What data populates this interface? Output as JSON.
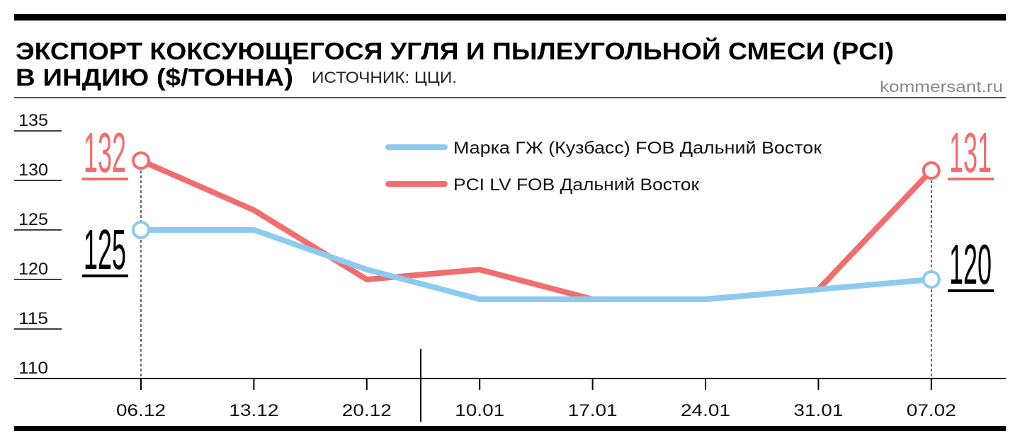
{
  "chart_data": {
    "type": "line",
    "title": "ЭКСПОРТ КОКСУЮЩЕГОСЯ УГЛЯ И ПЫЛЕУГОЛЬНОЙ СМЕСИ (PCI)",
    "subtitle": "В ИНДИЮ ($/ТОННА)",
    "source": "ИСТОЧНИК: ЦЦИ.",
    "site": "kommersant.ru",
    "categories": [
      "06.12",
      "13.12",
      "20.12",
      "10.01",
      "17.01",
      "24.01",
      "31.01",
      "07.02"
    ],
    "yticks": [
      "135",
      "130",
      "125",
      "120",
      "115",
      "110"
    ],
    "ylim": [
      110,
      135
    ],
    "grid": false,
    "legend_position": "top-right",
    "series": [
      {
        "name": "Марка ГЖ (Кузбасс) FOB Дальний Восток",
        "color": "#8ccbef",
        "values": [
          125,
          125,
          121,
          118,
          118,
          118,
          119,
          120
        ],
        "labels": {
          "first": "125",
          "last": "120"
        },
        "label_color": "#000000"
      },
      {
        "name": "PCI LV FOB Дальний Восток",
        "color": "#f26d6d",
        "values": [
          132,
          127,
          120,
          121,
          118,
          118,
          119,
          131
        ],
        "labels": {
          "first": "132",
          "last": "131"
        },
        "label_color": "#f26d6d"
      }
    ]
  }
}
